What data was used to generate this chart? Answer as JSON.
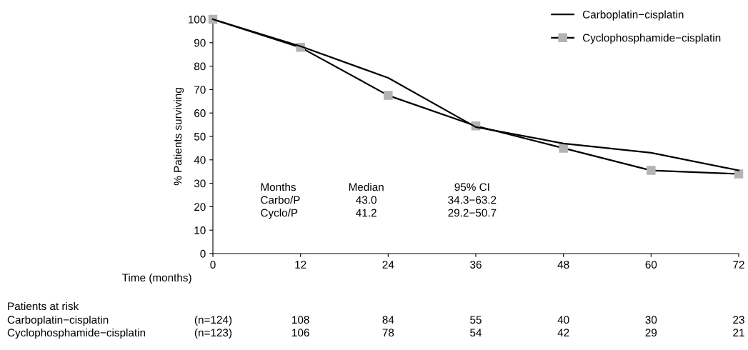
{
  "chart_data": {
    "type": "line",
    "ylabel": "% Patients surviving",
    "xlabel": "Time (months)",
    "x": [
      0,
      12,
      24,
      36,
      48,
      60,
      72
    ],
    "series": [
      {
        "name": "Carboplatin−cisplatin",
        "color": "#000000",
        "marker": "none",
        "values": [
          100,
          88.5,
          75,
          54,
          47,
          43,
          35.5
        ]
      },
      {
        "name": "Cyclophosphamide−cisplatin",
        "color": "#000000",
        "marker": "square",
        "values": [
          100,
          88,
          67.5,
          54.5,
          45,
          35.5,
          34
        ]
      }
    ],
    "xlim": [
      0,
      72
    ],
    "xticks": [
      0,
      12,
      24,
      36,
      48,
      60,
      72
    ],
    "ylim": [
      0,
      100
    ],
    "yticks": [
      0,
      10,
      20,
      30,
      40,
      50,
      60,
      70,
      80,
      90,
      100
    ],
    "grid": false,
    "legend": "top right",
    "line_style": "solid",
    "annotations": [
      "Months",
      "Median",
      "95% CI",
      "Carbo/P",
      "43.0",
      "34.3−63.2",
      "Cyclo/P",
      "41.2",
      "29.2−50.7",
      "Patients at risk",
      "Carboplatin−cisplatin",
      "(n=124)",
      "108",
      "84",
      "55",
      "40",
      "30",
      "23",
      "Cyclophosphamide−cisplatin",
      "(n=123)",
      "106",
      "78",
      "54",
      "42",
      "29",
      "21"
    ]
  }
}
